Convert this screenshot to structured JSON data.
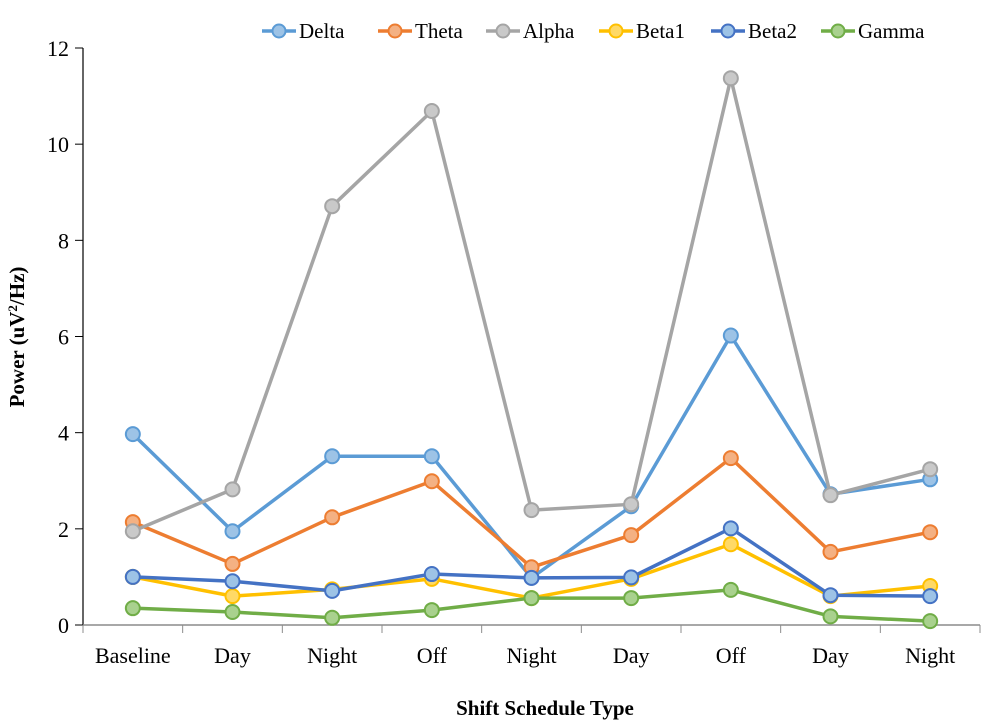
{
  "chart_data": {
    "type": "line",
    "title": "",
    "xlabel": "Shift Schedule Type",
    "ylabel_main": "Power (uV",
    "ylabel_sup": "2",
    "ylabel_tail": "/Hz)",
    "ylim": [
      0,
      12
    ],
    "yticks": [
      0,
      2,
      4,
      6,
      8,
      10,
      12
    ],
    "ytick_labels": [
      "0",
      "2",
      "4",
      "6",
      "8",
      "10",
      "12"
    ],
    "grid": false,
    "legend_position": "top",
    "categories": [
      "Baseline",
      "Day",
      "Night",
      "Off",
      "Night",
      "Day",
      "Off",
      "Day",
      "Night"
    ],
    "series": [
      {
        "name": "Delta",
        "color": "#5B9BD5",
        "fill": "#9DC3E6",
        "values": [
          3.97,
          1.95,
          3.51,
          3.51,
          0.98,
          2.47,
          6.02,
          2.72,
          3.03
        ]
      },
      {
        "name": "Theta",
        "color": "#ED7D31",
        "fill": "#F4B183",
        "values": [
          2.14,
          1.27,
          2.24,
          2.99,
          1.2,
          1.87,
          3.47,
          1.52,
          1.93
        ]
      },
      {
        "name": "Alpha",
        "color": "#A5A5A5",
        "fill": "#C9C9C9",
        "values": [
          1.95,
          2.82,
          8.71,
          10.69,
          2.39,
          2.51,
          11.37,
          2.7,
          3.24
        ]
      },
      {
        "name": "Beta1",
        "color": "#FFC000",
        "fill": "#FFD966",
        "values": [
          1.0,
          0.6,
          0.74,
          0.96,
          0.56,
          0.96,
          1.68,
          0.6,
          0.81
        ]
      },
      {
        "name": "Beta2",
        "color": "#4472C4",
        "fill": "#9DC3E6",
        "values": [
          1.0,
          0.91,
          0.71,
          1.06,
          0.98,
          0.99,
          2.01,
          0.62,
          0.6
        ]
      },
      {
        "name": "Gamma",
        "color": "#70AD47",
        "fill": "#A9D18E",
        "values": [
          0.35,
          0.27,
          0.15,
          0.31,
          0.56,
          0.56,
          0.73,
          0.18,
          0.08
        ]
      }
    ]
  }
}
